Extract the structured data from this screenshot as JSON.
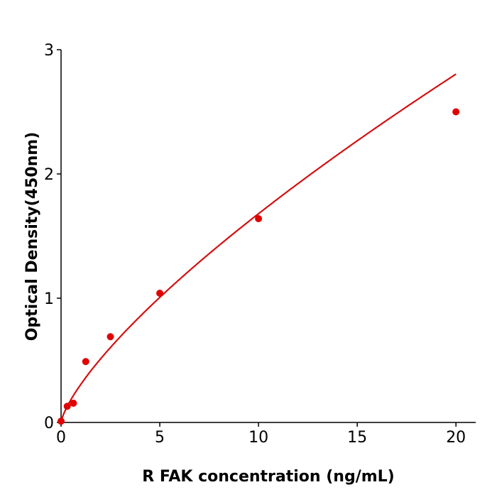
{
  "chart_data": {
    "type": "scatter",
    "title": "",
    "xlabel": "R  FAK concentration (ng/mL)",
    "ylabel": "Optical Density(450nm)",
    "xlim": [
      0,
      21
    ],
    "ylim": [
      0,
      3
    ],
    "xticks": [
      "0",
      "5",
      "10",
      "15",
      "20"
    ],
    "yticks": [
      "0",
      "1",
      "2",
      "3"
    ],
    "grid": false,
    "color": "#e00000",
    "line_color": "#d41010",
    "series": [
      {
        "x": [
          0,
          0.3125,
          0.625,
          1.25,
          2.5,
          5,
          10,
          20
        ],
        "y": [
          0.01,
          0.13,
          0.155,
          0.49,
          0.69,
          1.04,
          1.64,
          2.5
        ]
      }
    ],
    "fit_curve": true
  }
}
